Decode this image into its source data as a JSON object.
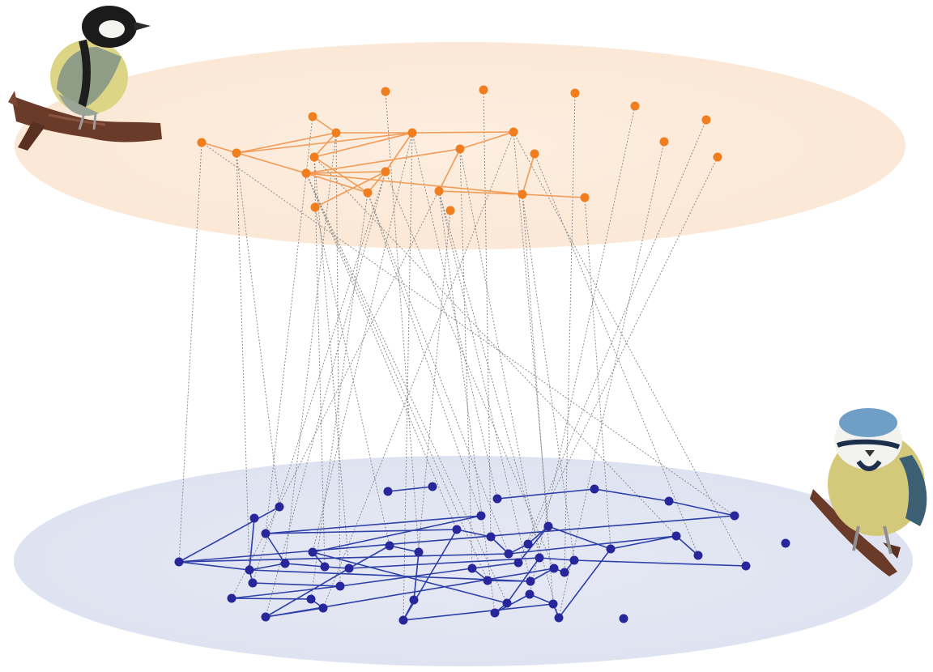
{
  "colors": {
    "background": "#ffffff",
    "top_layer_fill": "#fcebdc",
    "bottom_layer_fill": "#e3e7f3",
    "top_node": "#f07d1e",
    "top_edge": "#f29a55",
    "bottom_node": "#27269b",
    "bottom_edge": "#2d3fa8",
    "interlayer_link": "#8c8c8c"
  },
  "illustrations": {
    "top_left_bird": "great-tit-on-branch",
    "bottom_right_bird": "blue-tit-on-branch"
  },
  "diagram": {
    "type": "two-layer multiplex network",
    "top_layer": {
      "nodes": [
        {
          "id": "t1"
        },
        {
          "id": "t2"
        },
        {
          "id": "t3"
        },
        {
          "id": "t4"
        },
        {
          "id": "t5"
        },
        {
          "id": "t6"
        },
        {
          "id": "t7"
        },
        {
          "id": "t8"
        },
        {
          "id": "t9"
        },
        {
          "id": "t10"
        },
        {
          "id": "t11"
        },
        {
          "id": "t12"
        },
        {
          "id": "t13"
        },
        {
          "id": "t14"
        },
        {
          "id": "t15"
        },
        {
          "id": "t16"
        },
        {
          "id": "t17"
        },
        {
          "id": "t18"
        },
        {
          "id": "t19"
        },
        {
          "id": "t20"
        },
        {
          "id": "t21"
        },
        {
          "id": "t22"
        },
        {
          "id": "t23"
        },
        {
          "id": "t24"
        }
      ],
      "edges": [
        [
          "t5",
          "t7"
        ],
        [
          "t7",
          "t9"
        ],
        [
          "t7",
          "t8"
        ],
        [
          "t7",
          "t10"
        ],
        [
          "t8",
          "t10"
        ],
        [
          "t9",
          "t10"
        ],
        [
          "t9",
          "t15"
        ],
        [
          "t10",
          "t13"
        ],
        [
          "t10",
          "t11"
        ],
        [
          "t11",
          "t12"
        ],
        [
          "t12",
          "t14"
        ],
        [
          "t12",
          "t16"
        ],
        [
          "t14",
          "t13"
        ],
        [
          "t14",
          "t17"
        ],
        [
          "t15",
          "t14"
        ],
        [
          "t13",
          "t15"
        ],
        [
          "t6",
          "t14"
        ],
        [
          "t13",
          "t18"
        ],
        [
          "t16",
          "t17"
        ],
        [
          "t17",
          "t22"
        ],
        [
          "t17",
          "t23"
        ]
      ]
    },
    "bottom_layer": {
      "nodes": [
        {
          "id": "b1"
        },
        {
          "id": "b2"
        },
        {
          "id": "b3"
        },
        {
          "id": "b4"
        },
        {
          "id": "b5"
        },
        {
          "id": "b6"
        },
        {
          "id": "b7"
        },
        {
          "id": "b8"
        },
        {
          "id": "b9"
        },
        {
          "id": "b10"
        },
        {
          "id": "b11"
        },
        {
          "id": "b12"
        },
        {
          "id": "b13"
        },
        {
          "id": "b14"
        },
        {
          "id": "b15"
        },
        {
          "id": "b16"
        },
        {
          "id": "b17"
        },
        {
          "id": "b18"
        },
        {
          "id": "b19"
        },
        {
          "id": "b20"
        },
        {
          "id": "b21"
        },
        {
          "id": "b22"
        },
        {
          "id": "b23"
        },
        {
          "id": "b24"
        },
        {
          "id": "b25"
        },
        {
          "id": "b26"
        },
        {
          "id": "b27"
        },
        {
          "id": "b28"
        },
        {
          "id": "b29"
        },
        {
          "id": "b30"
        },
        {
          "id": "b31"
        },
        {
          "id": "b32"
        },
        {
          "id": "b33"
        },
        {
          "id": "b34"
        },
        {
          "id": "b35"
        },
        {
          "id": "b36"
        },
        {
          "id": "b37"
        },
        {
          "id": "b38"
        },
        {
          "id": "b39"
        },
        {
          "id": "b40"
        },
        {
          "id": "b41"
        },
        {
          "id": "b42"
        },
        {
          "id": "b43"
        },
        {
          "id": "b44"
        },
        {
          "id": "b45"
        },
        {
          "id": "b46"
        },
        {
          "id": "b47"
        },
        {
          "id": "b48"
        },
        {
          "id": "b49"
        },
        {
          "id": "b50"
        }
      ],
      "edges": [
        [
          "b1",
          "b2"
        ],
        [
          "b3",
          "b4"
        ],
        [
          "b4",
          "b5"
        ],
        [
          "b5",
          "b6"
        ],
        [
          "b6",
          "b11"
        ],
        [
          "b7",
          "b11"
        ],
        [
          "b8",
          "b12"
        ],
        [
          "b9",
          "b10"
        ],
        [
          "b9",
          "b13"
        ],
        [
          "b10",
          "b14"
        ],
        [
          "b11",
          "b12"
        ],
        [
          "b12",
          "b13"
        ],
        [
          "b12",
          "b15"
        ],
        [
          "b13",
          "b16"
        ],
        [
          "b14",
          "b16"
        ],
        [
          "b15",
          "b17"
        ],
        [
          "b16",
          "b22"
        ],
        [
          "b17",
          "b18"
        ],
        [
          "b18",
          "b19"
        ],
        [
          "b19",
          "b20"
        ],
        [
          "b20",
          "b21"
        ],
        [
          "b21",
          "b22"
        ],
        [
          "b22",
          "b23"
        ],
        [
          "b23",
          "b24"
        ],
        [
          "b24",
          "b25"
        ],
        [
          "b25",
          "b26"
        ],
        [
          "b26",
          "b27"
        ],
        [
          "b27",
          "b28"
        ],
        [
          "b28",
          "b29"
        ],
        [
          "b29",
          "b30"
        ],
        [
          "b30",
          "b31"
        ],
        [
          "b31",
          "b32"
        ],
        [
          "b32",
          "b33"
        ],
        [
          "b33",
          "b34"
        ],
        [
          "b34",
          "b35"
        ],
        [
          "b35",
          "b36"
        ],
        [
          "b36",
          "b37"
        ],
        [
          "b37",
          "b38"
        ],
        [
          "b38",
          "b39"
        ],
        [
          "b39",
          "b40"
        ],
        [
          "b40",
          "b41"
        ],
        [
          "b41",
          "b42"
        ],
        [
          "b42",
          "b43"
        ],
        [
          "b43",
          "b44"
        ],
        [
          "b44",
          "b45"
        ],
        [
          "b45",
          "b46"
        ],
        [
          "b46",
          "b47"
        ],
        [
          "b11",
          "b29"
        ],
        [
          "b12",
          "b35"
        ],
        [
          "b17",
          "b33"
        ],
        [
          "b21",
          "b36"
        ],
        [
          "b26",
          "b43"
        ],
        [
          "b9",
          "b27"
        ],
        [
          "b14",
          "b40"
        ],
        [
          "b31",
          "b45"
        ],
        [
          "b38",
          "b48"
        ],
        [
          "b29",
          "b46"
        ],
        [
          "b22",
          "b39"
        ]
      ]
    },
    "interlayer_links": [
      [
        "t5",
        "b9"
      ],
      [
        "t6",
        "b11"
      ],
      [
        "t7",
        "b13"
      ],
      [
        "t7",
        "b17"
      ],
      [
        "t8",
        "b12"
      ],
      [
        "t9",
        "b16"
      ],
      [
        "t9",
        "b22"
      ],
      [
        "t10",
        "b14"
      ],
      [
        "t10",
        "b26"
      ],
      [
        "t11",
        "b20"
      ],
      [
        "t11",
        "b31"
      ],
      [
        "t12",
        "b18"
      ],
      [
        "t12",
        "b33"
      ],
      [
        "t13",
        "b21"
      ],
      [
        "t13",
        "b36"
      ],
      [
        "t14",
        "b27"
      ],
      [
        "t14",
        "b40"
      ],
      [
        "t15",
        "b19"
      ],
      [
        "t15",
        "b29"
      ],
      [
        "t16",
        "b35"
      ],
      [
        "t16",
        "b41"
      ],
      [
        "t17",
        "b38"
      ],
      [
        "t17",
        "b43"
      ],
      [
        "t18",
        "b23"
      ],
      [
        "t19",
        "b25"
      ],
      [
        "t20",
        "b32"
      ],
      [
        "t21",
        "b44"
      ],
      [
        "t22",
        "b45"
      ],
      [
        "t23",
        "b47"
      ],
      [
        "t24",
        "b30"
      ],
      [
        "t1",
        "b24"
      ],
      [
        "t2",
        "b28"
      ],
      [
        "t3",
        "b37"
      ],
      [
        "t4",
        "b42"
      ],
      [
        "t8",
        "b7"
      ],
      [
        "t6",
        "b6"
      ],
      [
        "t15",
        "b10"
      ],
      [
        "t13",
        "b15"
      ],
      [
        "t14",
        "b34"
      ],
      [
        "t12",
        "b39"
      ],
      [
        "t9",
        "b46"
      ],
      [
        "t10",
        "b3"
      ],
      [
        "t16",
        "b44"
      ],
      [
        "t11",
        "b48"
      ]
    ]
  }
}
